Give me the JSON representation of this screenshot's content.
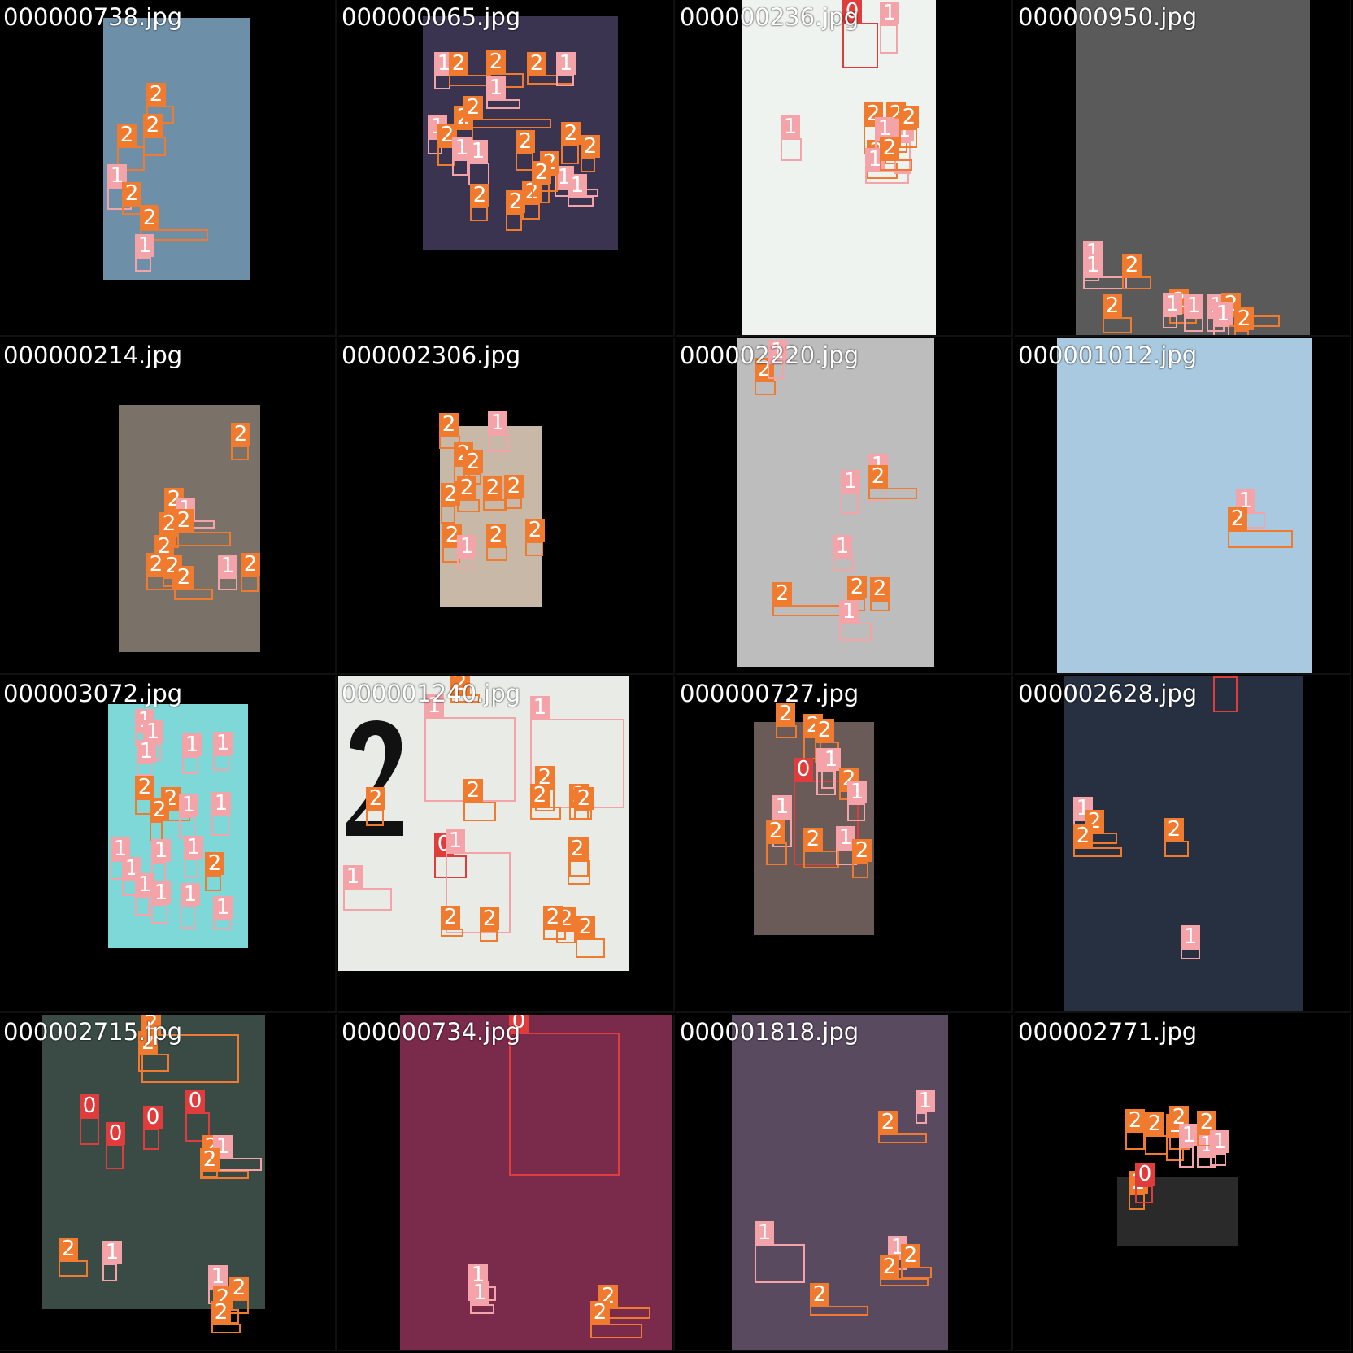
{
  "colors": {
    "class_0": "#e03c3c",
    "class_1": "#f4a3a8",
    "class_2": "#f07a2e"
  },
  "tiles": [
    {
      "filename": "000000738.jpg",
      "frame_color": "#6e8fa8",
      "labels": [
        "2",
        "2",
        "2",
        "1",
        "2",
        "2",
        "1"
      ]
    },
    {
      "filename": "000000065.jpg",
      "frame_color": "#3a3450",
      "labels": [
        "1",
        "2",
        "2",
        "2",
        "1",
        "1",
        "2",
        "2",
        "1",
        "2",
        "1",
        "1",
        "2",
        "2",
        "1",
        "2",
        "2",
        "2",
        "2",
        "2",
        "1",
        "2"
      ]
    },
    {
      "filename": "000000236.jpg",
      "frame_color": "#eef3ef",
      "labels": [
        "0",
        "1",
        "1",
        "2",
        "2",
        "2",
        "1",
        "1",
        "1",
        "2",
        "2"
      ]
    },
    {
      "filename": "000000950.jpg",
      "frame_color": "#5a5a5a",
      "labels": [
        "1",
        "1",
        "2",
        "2",
        "2",
        "1",
        "1",
        "1",
        "2",
        "1",
        "2"
      ]
    },
    {
      "filename": "000000214.jpg",
      "frame_color": "#7a7268",
      "labels": [
        "2",
        "2",
        "1",
        "2",
        "2",
        "2",
        "2",
        "2",
        "2",
        "1",
        "2"
      ]
    },
    {
      "filename": "000002306.jpg",
      "frame_color": "#c8b8a8",
      "labels": [
        "2",
        "2",
        "1",
        "2",
        "2",
        "2",
        "2",
        "2",
        "2",
        "2",
        "1",
        "2"
      ]
    },
    {
      "filename": "000002220.jpg",
      "frame_color": "#bdbdbd",
      "labels": [
        "2",
        "1",
        "1",
        "1",
        "2",
        "1",
        "2",
        "2",
        "2",
        "1"
      ]
    },
    {
      "filename": "000001012.jpg",
      "frame_color": "#a9c9e0",
      "labels": [
        "1",
        "2"
      ]
    },
    {
      "filename": "000003072.jpg",
      "frame_color": "#7fd8d8",
      "labels": [
        "1",
        "1",
        "1",
        "1",
        "1",
        "2",
        "2",
        "2",
        "1",
        "1",
        "1",
        "1",
        "1",
        "1",
        "2",
        "1",
        "1",
        "1",
        "1"
      ]
    },
    {
      "filename": "000001240.jpg",
      "frame_color": "#e8ebe6",
      "labels": [
        "2",
        "1",
        "1",
        "2",
        "2",
        "2",
        "2",
        "2",
        "2",
        "2",
        "0",
        "1",
        "1",
        "2",
        "2",
        "2",
        "2",
        "2",
        "2"
      ]
    },
    {
      "filename": "000000727.jpg",
      "frame_color": "#6a5a58",
      "labels": [
        "2",
        "2",
        "2",
        "0",
        "1",
        "1",
        "2",
        "1",
        "1",
        "2",
        "2",
        "1",
        "2"
      ]
    },
    {
      "filename": "000002628.jpg",
      "frame_color": "#263040",
      "labels": [
        "0",
        "1",
        "2",
        "2",
        "2",
        "1"
      ]
    },
    {
      "filename": "000002715.jpg",
      "frame_color": "#3a4a44",
      "labels": [
        "2",
        "2",
        "0",
        "0",
        "0",
        "0",
        "2",
        "1",
        "2",
        "2",
        "1",
        "1",
        "2",
        "2",
        "2"
      ]
    },
    {
      "filename": "000000734.jpg",
      "frame_color": "#7a2a4a",
      "labels": [
        "0",
        "1",
        "1",
        "2",
        "2"
      ]
    },
    {
      "filename": "000001818.jpg",
      "frame_color": "#5a4a60",
      "labels": [
        "1",
        "2",
        "1",
        "1",
        "2",
        "2",
        "2"
      ]
    },
    {
      "filename": "000002771.jpg",
      "frame_color": "#2a2a2a",
      "labels": [
        "2",
        "2",
        "2",
        "2",
        "1",
        "1",
        "2",
        "1",
        "2",
        "0"
      ]
    }
  ]
}
